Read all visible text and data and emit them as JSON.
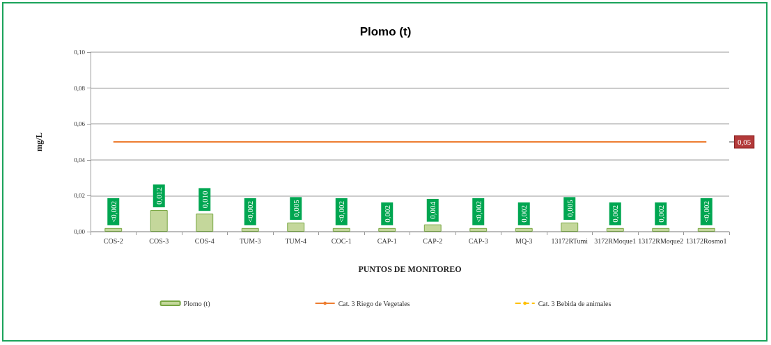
{
  "chart_data": {
    "type": "bar",
    "title": "Plomo (t)",
    "xlabel": "PUNTOS DE MONITOREO",
    "ylabel": "mg/L",
    "categories": [
      "COS-2",
      "COS-3",
      "COS-4",
      "TUM-3",
      "TUM-4",
      "COC-1",
      "CAP-1",
      "CAP-2",
      "CAP-3",
      "MQ-3",
      "13172RTumi",
      "3172RMoque1",
      "13172RMoque2",
      "13172Rosmo1"
    ],
    "series": [
      {
        "name": "Plomo (t)",
        "color": "#c4d79b",
        "values": [
          0.002,
          0.012,
          0.01,
          0.002,
          0.005,
          0.002,
          0.002,
          0.004,
          0.002,
          0.002,
          0.005,
          0.002,
          0.002,
          0.002
        ],
        "value_labels": [
          "<0,002",
          "0,012",
          "0,010",
          "<0,002",
          "0,005",
          "<0,002",
          "0,002",
          "0,004",
          "<0,002",
          "0,002",
          "0,005",
          "0,002",
          "0,002",
          "<0,002"
        ]
      },
      {
        "name": "Cat. 3 Riego de Vegetales",
        "type": "line",
        "color": "#ed7d31",
        "line_style": "solid",
        "values": [
          0.05,
          0.05,
          0.05,
          0.05,
          0.05,
          0.05,
          0.05,
          0.05,
          0.05,
          0.05,
          0.05,
          0.05,
          0.05,
          0.05
        ]
      },
      {
        "name": "Cat. 3 Bebida de animales",
        "type": "line",
        "color": "#ffc000",
        "line_style": "dashed",
        "values": [
          null,
          null,
          null,
          null,
          null,
          null,
          null,
          null,
          null,
          null,
          null,
          null,
          null,
          null
        ]
      }
    ],
    "annotations": [
      "0,05"
    ],
    "ylim": [
      0,
      0.1
    ],
    "yticks": [
      {
        "value": 0,
        "label": "0,00"
      },
      {
        "value": 0.02,
        "label": "0,02"
      },
      {
        "value": 0.04,
        "label": "0,04"
      },
      {
        "value": 0.06,
        "label": "0,06"
      },
      {
        "value": 0.08,
        "label": "0,08"
      },
      {
        "value": 0.1,
        "label": "0,10"
      }
    ],
    "grid": "y",
    "legend": "bottom",
    "marker": "none"
  }
}
